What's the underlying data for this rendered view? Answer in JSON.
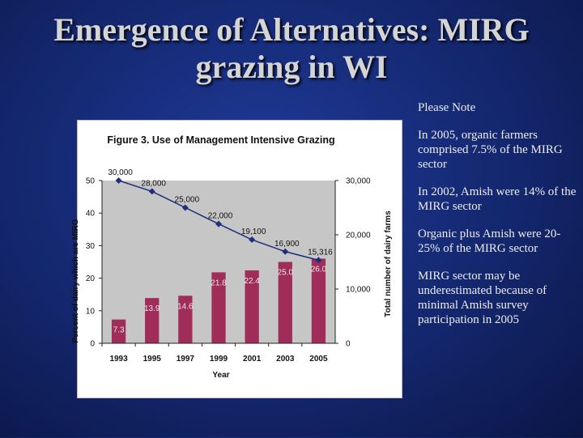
{
  "slide": {
    "title_line1": "Emergence of Alternatives: MIRG",
    "title_line2": "grazing in WI"
  },
  "notes": {
    "heading": "Please Note",
    "items": [
      "In 2005, organic farmers comprised  7.5% of the MIRG sector",
      "In 2002, Amish were 14% of the MIRG sector",
      "Organic  plus Amish were  20-25% of the MIRG sector",
      "MIRG sector may be underestimated because of minimal Amish survey participation in 2005"
    ]
  },
  "chart_data": {
    "type": "bar",
    "title": "Figure 3.   Use of Management Intensive Grazing",
    "xlabel": "Year",
    "ylabel": "Percent of dairy which are MIRG",
    "y2label": "Total number of dairy farms",
    "categories": [
      "1993",
      "1995",
      "1997",
      "1999",
      "2001",
      "2003",
      "2005"
    ],
    "ylim": [
      0,
      50
    ],
    "yticks": [
      0,
      10,
      20,
      30,
      40,
      50
    ],
    "y2lim": [
      0,
      30000
    ],
    "y2ticks": [
      0,
      10000,
      20000,
      30000
    ],
    "y2tick_labels": [
      "0",
      "10,000",
      "20,000",
      "30,000"
    ],
    "series": [
      {
        "kind": "bar",
        "axis": "left",
        "values": [
          7.3,
          13.9,
          14.6,
          21.8,
          22.4,
          25.0,
          26.0
        ],
        "labels": [
          "7.3",
          "13.9",
          "14.6",
          "21.8",
          "22.4",
          "25.0",
          "26.0"
        ],
        "color": "#a02c5a"
      },
      {
        "kind": "line",
        "axis": "right",
        "values": [
          30000,
          28000,
          25000,
          22000,
          19100,
          16900,
          15316
        ],
        "labels": [
          "30,000",
          "28,000",
          "25,000",
          "22,000",
          "19,100",
          "16,900",
          "15,316"
        ],
        "color": "#1f2d7a"
      }
    ],
    "grid": false,
    "plot_background": "#c6c6c6"
  }
}
